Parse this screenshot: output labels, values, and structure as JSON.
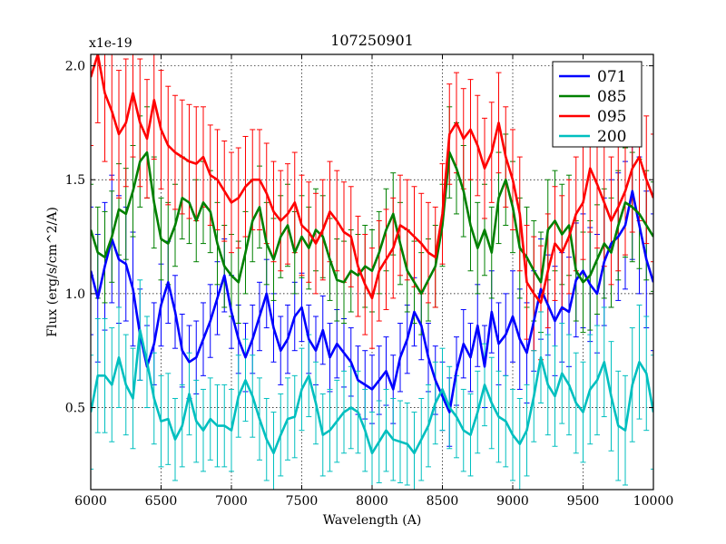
{
  "chart_data": {
    "type": "line",
    "title": "107250901",
    "xlabel": "Wavelength (A)",
    "ylabel": "Flux (erg/s/cm^2/A)",
    "y_multiplier_label": "x1e-19",
    "xlim": [
      6000,
      10000
    ],
    "ylim": [
      0.14,
      2.05
    ],
    "xticks": [
      6000,
      6500,
      7000,
      7500,
      8000,
      8500,
      9000,
      9500,
      10000
    ],
    "xtick_labels": [
      "6000",
      "6500",
      "7000",
      "7500",
      "8000",
      "8500",
      "9000",
      "9500",
      "10000"
    ],
    "yticks": [
      0.5,
      1.0,
      1.5,
      2.0
    ],
    "ytick_labels": [
      "0.5",
      "1.0",
      "1.5",
      "2.0"
    ],
    "grid": true,
    "legend_position": "top-right",
    "x": [
      6000,
      6050,
      6100,
      6150,
      6200,
      6250,
      6300,
      6350,
      6400,
      6450,
      6500,
      6550,
      6600,
      6650,
      6700,
      6750,
      6800,
      6850,
      6900,
      6950,
      7000,
      7050,
      7100,
      7150,
      7200,
      7250,
      7300,
      7350,
      7400,
      7450,
      7500,
      7550,
      7600,
      7650,
      7700,
      7750,
      7800,
      7850,
      7900,
      7950,
      8000,
      8050,
      8100,
      8150,
      8200,
      8250,
      8300,
      8350,
      8400,
      8450,
      8500,
      8550,
      8600,
      8650,
      8700,
      8750,
      8800,
      8850,
      8900,
      8950,
      9000,
      9050,
      9100,
      9150,
      9200,
      9250,
      9300,
      9350,
      9400,
      9450,
      9500,
      9550,
      9600,
      9650,
      9700,
      9750,
      9800,
      9850,
      9900,
      9950,
      10000
    ],
    "series": [
      {
        "name": "071",
        "color": "#0000ff",
        "values": [
          1.1,
          0.98,
          1.12,
          1.24,
          1.15,
          1.13,
          1.02,
          0.82,
          0.68,
          0.78,
          0.95,
          1.05,
          0.92,
          0.75,
          0.7,
          0.72,
          0.8,
          0.88,
          0.98,
          1.08,
          0.92,
          0.8,
          0.72,
          0.8,
          0.9,
          1.0,
          0.85,
          0.75,
          0.8,
          0.9,
          0.94,
          0.8,
          0.75,
          0.84,
          0.72,
          0.78,
          0.74,
          0.7,
          0.62,
          0.6,
          0.58,
          0.62,
          0.66,
          0.58,
          0.72,
          0.8,
          0.92,
          0.86,
          0.72,
          0.62,
          0.55,
          0.48,
          0.66,
          0.78,
          0.72,
          0.86,
          0.68,
          0.92,
          0.78,
          0.82,
          0.9,
          0.8,
          0.74,
          0.88,
          1.02,
          0.95,
          0.88,
          0.94,
          0.92,
          1.06,
          1.1,
          1.04,
          1.0,
          1.14,
          1.22,
          1.25,
          1.3,
          1.45,
          1.3,
          1.15,
          1.05
        ],
        "errors": [
          0.28,
          0.28,
          0.28,
          0.28,
          0.28,
          0.25,
          0.25,
          0.2,
          0.18,
          0.18,
          0.18,
          0.18,
          0.16,
          0.16,
          0.16,
          0.16,
          0.16,
          0.16,
          0.16,
          0.16,
          0.16,
          0.15,
          0.15,
          0.15,
          0.15,
          0.15,
          0.15,
          0.15,
          0.15,
          0.15,
          0.15,
          0.15,
          0.15,
          0.15,
          0.15,
          0.15,
          0.15,
          0.15,
          0.15,
          0.15,
          0.15,
          0.15,
          0.15,
          0.15,
          0.15,
          0.15,
          0.15,
          0.15,
          0.15,
          0.15,
          0.15,
          0.15,
          0.15,
          0.15,
          0.15,
          0.18,
          0.18,
          0.18,
          0.18,
          0.18,
          0.2,
          0.22,
          0.22,
          0.22,
          0.22,
          0.22,
          0.24,
          0.24,
          0.24,
          0.25,
          0.25,
          0.25,
          0.26,
          0.28,
          0.28,
          0.28,
          0.28,
          0.3,
          0.3,
          0.3,
          0.3
        ]
      },
      {
        "name": "085",
        "color": "#008000",
        "values": [
          1.28,
          1.18,
          1.16,
          1.25,
          1.37,
          1.35,
          1.45,
          1.58,
          1.62,
          1.4,
          1.24,
          1.22,
          1.3,
          1.42,
          1.4,
          1.32,
          1.4,
          1.36,
          1.22,
          1.12,
          1.08,
          1.05,
          1.18,
          1.32,
          1.38,
          1.22,
          1.15,
          1.25,
          1.3,
          1.18,
          1.25,
          1.2,
          1.28,
          1.25,
          1.15,
          1.06,
          1.05,
          1.1,
          1.08,
          1.12,
          1.1,
          1.18,
          1.28,
          1.35,
          1.22,
          1.1,
          1.05,
          1.0,
          1.06,
          1.12,
          1.3,
          1.62,
          1.55,
          1.45,
          1.3,
          1.2,
          1.28,
          1.18,
          1.42,
          1.5,
          1.38,
          1.2,
          1.16,
          1.1,
          1.05,
          1.28,
          1.32,
          1.26,
          1.3,
          1.1,
          1.05,
          1.08,
          1.15,
          1.22,
          1.18,
          1.3,
          1.4,
          1.38,
          1.35,
          1.3,
          1.25
        ],
        "errors": [
          0.2,
          0.2,
          0.2,
          0.2,
          0.2,
          0.2,
          0.2,
          0.2,
          0.2,
          0.2,
          0.18,
          0.18,
          0.18,
          0.18,
          0.18,
          0.18,
          0.18,
          0.18,
          0.18,
          0.18,
          0.18,
          0.18,
          0.18,
          0.18,
          0.18,
          0.18,
          0.18,
          0.18,
          0.18,
          0.18,
          0.18,
          0.18,
          0.18,
          0.18,
          0.18,
          0.18,
          0.18,
          0.18,
          0.18,
          0.18,
          0.18,
          0.18,
          0.18,
          0.18,
          0.18,
          0.18,
          0.18,
          0.18,
          0.18,
          0.18,
          0.18,
          0.2,
          0.2,
          0.2,
          0.2,
          0.2,
          0.2,
          0.2,
          0.2,
          0.2,
          0.2,
          0.22,
          0.22,
          0.22,
          0.22,
          0.22,
          0.22,
          0.22,
          0.22,
          0.22,
          0.22,
          0.24,
          0.24,
          0.24,
          0.24,
          0.24,
          0.24,
          0.24,
          0.24,
          0.24,
          0.24
        ]
      },
      {
        "name": "095",
        "color": "#ff0000",
        "values": [
          1.95,
          2.05,
          1.88,
          1.8,
          1.7,
          1.75,
          1.88,
          1.75,
          1.68,
          1.85,
          1.72,
          1.65,
          1.62,
          1.6,
          1.58,
          1.57,
          1.6,
          1.52,
          1.5,
          1.45,
          1.4,
          1.42,
          1.47,
          1.5,
          1.5,
          1.44,
          1.36,
          1.32,
          1.35,
          1.4,
          1.3,
          1.27,
          1.22,
          1.28,
          1.36,
          1.32,
          1.27,
          1.25,
          1.12,
          1.04,
          0.98,
          1.1,
          1.15,
          1.2,
          1.3,
          1.28,
          1.25,
          1.22,
          1.18,
          1.16,
          1.35,
          1.7,
          1.75,
          1.68,
          1.72,
          1.65,
          1.55,
          1.62,
          1.75,
          1.6,
          1.5,
          1.35,
          1.05,
          1.0,
          0.96,
          1.1,
          1.22,
          1.18,
          1.25,
          1.35,
          1.4,
          1.55,
          1.48,
          1.4,
          1.32,
          1.38,
          1.45,
          1.55,
          1.6,
          1.5,
          1.42
        ],
        "errors": [
          0.3,
          0.3,
          0.3,
          0.3,
          0.28,
          0.28,
          0.28,
          0.28,
          0.26,
          0.26,
          0.26,
          0.26,
          0.25,
          0.25,
          0.25,
          0.25,
          0.22,
          0.22,
          0.22,
          0.22,
          0.22,
          0.22,
          0.22,
          0.22,
          0.22,
          0.22,
          0.22,
          0.22,
          0.22,
          0.22,
          0.22,
          0.22,
          0.22,
          0.22,
          0.22,
          0.22,
          0.22,
          0.22,
          0.22,
          0.22,
          0.22,
          0.22,
          0.22,
          0.22,
          0.22,
          0.22,
          0.22,
          0.22,
          0.22,
          0.22,
          0.22,
          0.22,
          0.22,
          0.22,
          0.22,
          0.22,
          0.22,
          0.22,
          0.22,
          0.22,
          0.22,
          0.25,
          0.25,
          0.25,
          0.25,
          0.25,
          0.25,
          0.25,
          0.25,
          0.25,
          0.25,
          0.28,
          0.28,
          0.28,
          0.28,
          0.28,
          0.28,
          0.28,
          0.28,
          0.28,
          0.28
        ]
      },
      {
        "name": "200",
        "color": "#00bfbf",
        "values": [
          0.48,
          0.64,
          0.64,
          0.6,
          0.72,
          0.6,
          0.54,
          0.84,
          0.7,
          0.54,
          0.44,
          0.45,
          0.36,
          0.42,
          0.56,
          0.44,
          0.4,
          0.45,
          0.42,
          0.42,
          0.4,
          0.55,
          0.62,
          0.55,
          0.45,
          0.36,
          0.3,
          0.38,
          0.45,
          0.46,
          0.58,
          0.64,
          0.52,
          0.38,
          0.4,
          0.44,
          0.48,
          0.5,
          0.48,
          0.4,
          0.3,
          0.35,
          0.4,
          0.36,
          0.35,
          0.34,
          0.3,
          0.36,
          0.42,
          0.52,
          0.58,
          0.5,
          0.46,
          0.4,
          0.38,
          0.48,
          0.6,
          0.52,
          0.46,
          0.44,
          0.38,
          0.34,
          0.4,
          0.55,
          0.72,
          0.6,
          0.55,
          0.65,
          0.6,
          0.52,
          0.48,
          0.58,
          0.62,
          0.7,
          0.55,
          0.42,
          0.4,
          0.6,
          0.7,
          0.65,
          0.48
        ],
        "errors": [
          0.25,
          0.25,
          0.25,
          0.25,
          0.22,
          0.22,
          0.22,
          0.22,
          0.2,
          0.2,
          0.2,
          0.2,
          0.18,
          0.18,
          0.18,
          0.18,
          0.18,
          0.18,
          0.18,
          0.18,
          0.18,
          0.18,
          0.18,
          0.18,
          0.18,
          0.18,
          0.18,
          0.18,
          0.18,
          0.18,
          0.18,
          0.18,
          0.18,
          0.18,
          0.18,
          0.18,
          0.18,
          0.18,
          0.18,
          0.18,
          0.18,
          0.18,
          0.18,
          0.18,
          0.18,
          0.18,
          0.18,
          0.18,
          0.18,
          0.18,
          0.18,
          0.18,
          0.18,
          0.18,
          0.18,
          0.18,
          0.18,
          0.2,
          0.2,
          0.2,
          0.2,
          0.2,
          0.2,
          0.2,
          0.2,
          0.22,
          0.22,
          0.22,
          0.22,
          0.22,
          0.22,
          0.24,
          0.24,
          0.24,
          0.24,
          0.24,
          0.24,
          0.25,
          0.25,
          0.25,
          0.25
        ]
      }
    ]
  }
}
